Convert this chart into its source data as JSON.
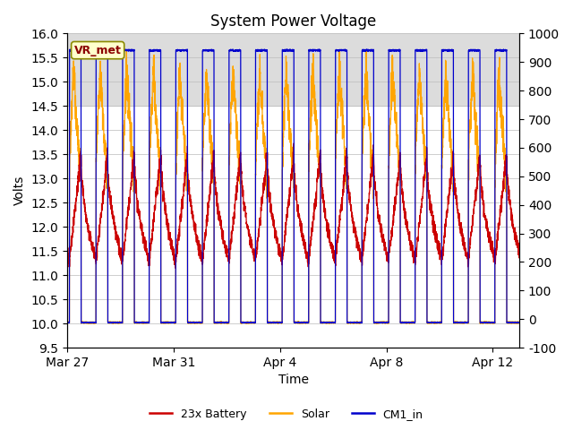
{
  "title": "System Power Voltage",
  "xlabel": "Time",
  "ylabel_left": "Volts",
  "ylim_left": [
    9.5,
    16.0
  ],
  "ylim_right": [
    -100,
    1000
  ],
  "yticks_left": [
    9.5,
    10.0,
    10.5,
    11.0,
    11.5,
    12.0,
    12.5,
    13.0,
    13.5,
    14.0,
    14.5,
    15.0,
    15.5,
    16.0
  ],
  "yticks_right": [
    -100,
    0,
    100,
    200,
    300,
    400,
    500,
    600,
    700,
    800,
    900,
    1000
  ],
  "xtick_positions": [
    0,
    4,
    8,
    12,
    16
  ],
  "xtick_labels": [
    "Mar 27",
    "Mar 31",
    "Apr 4",
    "Apr 8",
    "Apr 12"
  ],
  "annotation_text": "VR_met",
  "annotation_color": "#8B0000",
  "annotation_bg": "#FFFFCC",
  "annotation_edge": "#8B8B00",
  "colors": {
    "battery": "#CC0000",
    "solar": "#FFA500",
    "cm1": "#0000CC"
  },
  "legend_labels": [
    "23x Battery",
    "Solar",
    "CM1_in"
  ],
  "grid_color": "#BBBBBB",
  "bg_band_color": "#DCDCDC",
  "bg_band_ylim": [
    14.5,
    16.1
  ],
  "total_days": 17.0,
  "n_points": 3000,
  "day_on_start": 0.08,
  "day_on_end": 0.52,
  "cm1_high": 15.65,
  "cm1_low": 10.02,
  "solar_peak_mean": 15.3,
  "solar_base": 10.02,
  "battery_night_base": 11.3,
  "battery_day_peak": 13.5
}
